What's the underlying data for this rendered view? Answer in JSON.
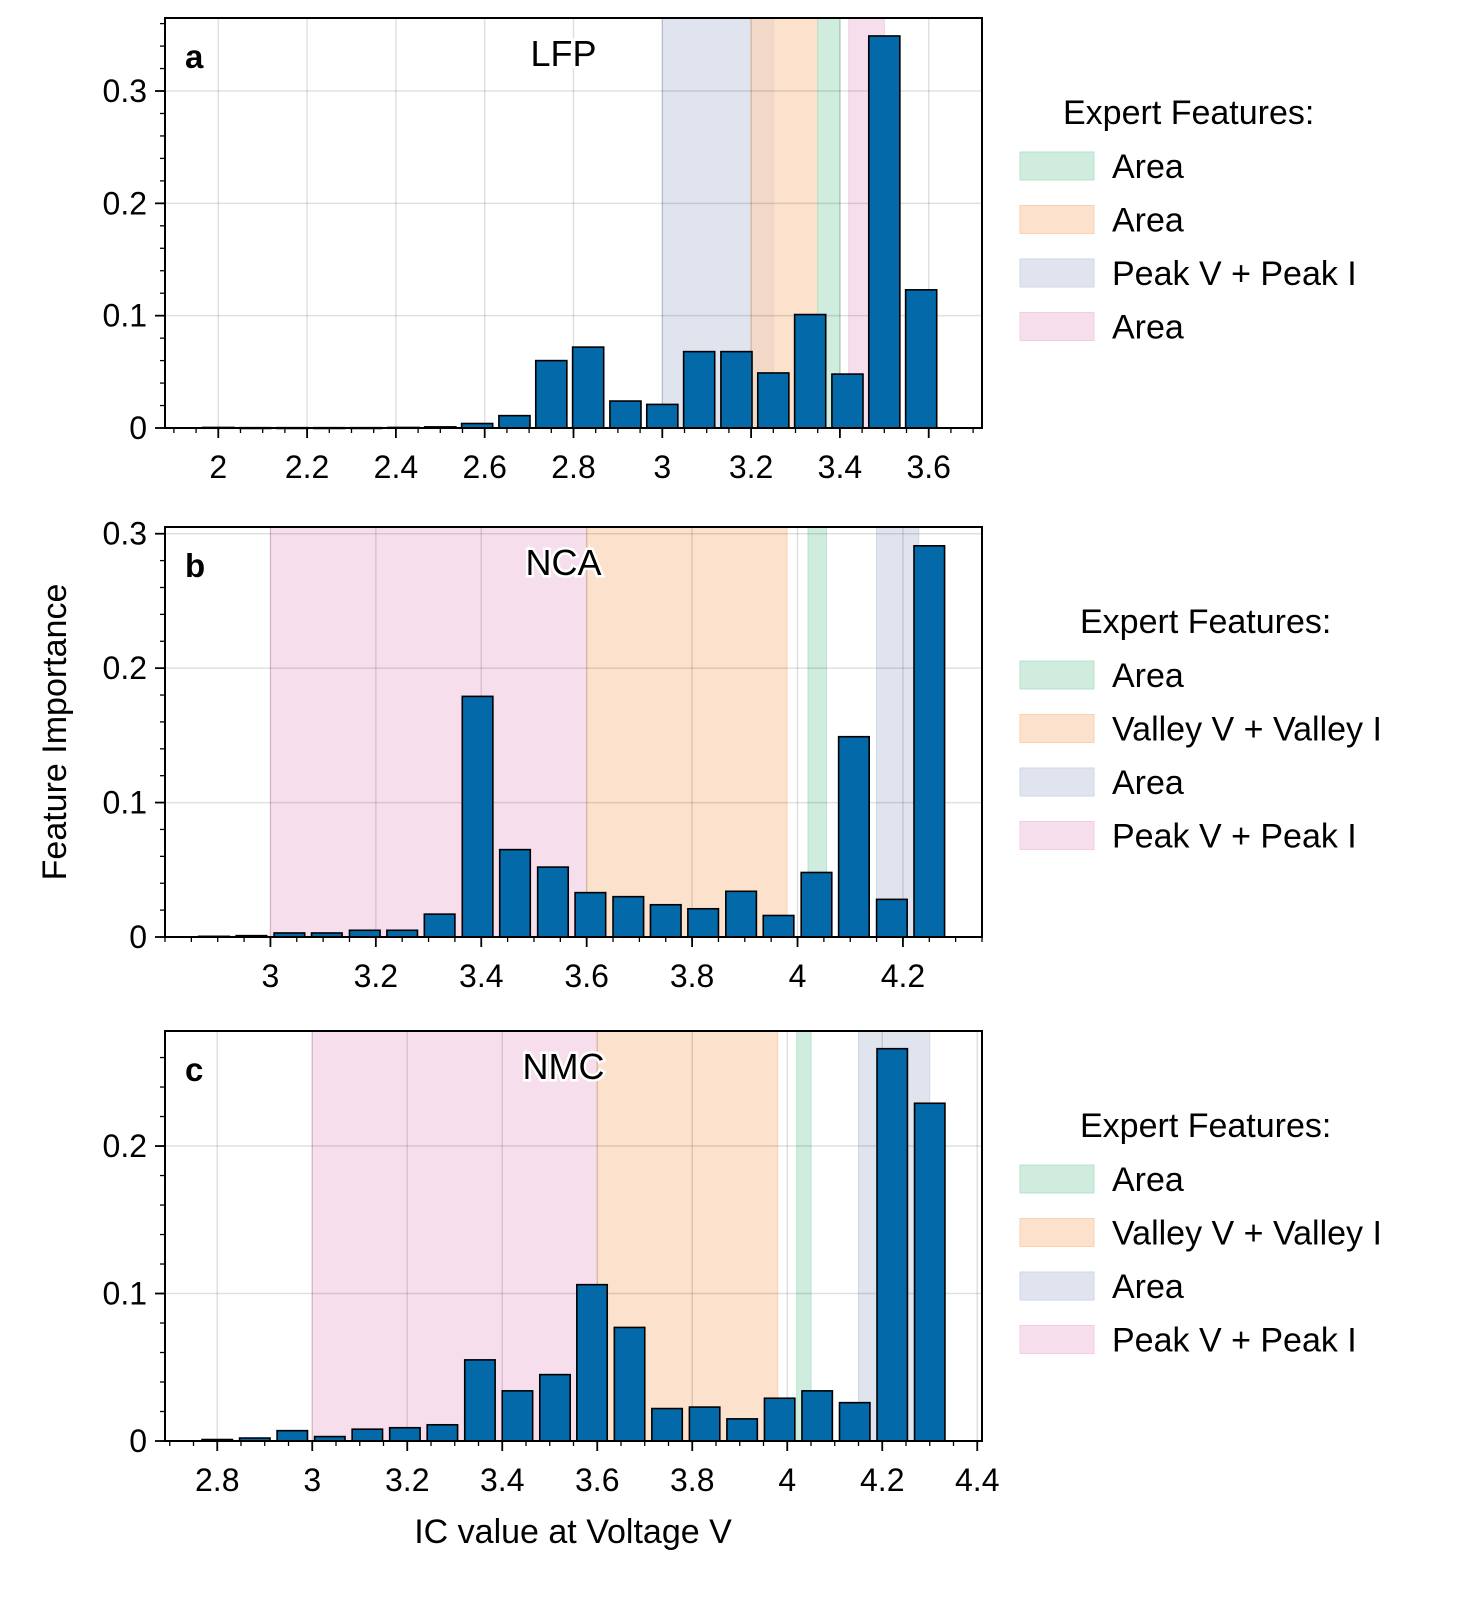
{
  "figure": {
    "ylabel": "Feature Importance",
    "xlabel": "IC value at Voltage V",
    "bar_color": "#0369a8",
    "band_colors": {
      "green": "#b7e2cc",
      "orange": "#fbd1b0",
      "blue": "#cfd6e6",
      "pink": "#f3cde3"
    }
  },
  "chart_data": [
    {
      "type": "bar",
      "panel_letter": "a",
      "title": "LFP",
      "xlim": [
        1.88,
        3.72
      ],
      "ylim": [
        0,
        0.365
      ],
      "xticks": [
        2,
        2.2,
        2.4,
        2.6,
        2.8,
        3,
        3.2,
        3.4,
        3.6
      ],
      "xtick_labels": [
        "2",
        "2.2",
        "2.4",
        "2.6",
        "2.8",
        "3",
        "3.2",
        "3.4",
        "3.6"
      ],
      "yticks": [
        0,
        0.1,
        0.2,
        0.3
      ],
      "ytick_labels": [
        "0",
        "0.1",
        "0.2",
        "0.3"
      ],
      "bar_width": 0.07,
      "x": [
        2.0,
        2.083,
        2.167,
        2.25,
        2.333,
        2.417,
        2.5,
        2.583,
        2.667,
        2.75,
        2.833,
        2.917,
        3.0,
        3.083,
        3.167,
        3.25,
        3.333,
        3.417,
        3.5,
        3.583
      ],
      "values": [
        0.0005,
        0.0003,
        0.0003,
        0.0003,
        0.0003,
        0.0005,
        0.001,
        0.004,
        0.011,
        0.06,
        0.072,
        0.024,
        0.021,
        0.068,
        0.068,
        0.049,
        0.101,
        0.048,
        0.349,
        0.123
      ],
      "bands": [
        {
          "x0": 3.0,
          "x1": 3.2,
          "color": "blue"
        },
        {
          "x0": 3.2,
          "x1": 3.25,
          "color": "blue"
        },
        {
          "x0": 3.2,
          "x1": 3.35,
          "color": "orange"
        },
        {
          "x0": 3.35,
          "x1": 3.4,
          "color": "green"
        },
        {
          "x0": 3.42,
          "x1": 3.5,
          "color": "pink"
        }
      ],
      "legend": {
        "title": "Expert Features:",
        "entries": [
          {
            "label": "Area",
            "color": "green"
          },
          {
            "label": "Area",
            "color": "orange"
          },
          {
            "label": "Peak V + Peak I",
            "color": "blue"
          },
          {
            "label": "Area",
            "color": "pink"
          }
        ]
      }
    },
    {
      "type": "bar",
      "panel_letter": "b",
      "title": "NCA",
      "xlim": [
        2.8,
        4.35
      ],
      "ylim": [
        0,
        0.305
      ],
      "xticks": [
        3,
        3.2,
        3.4,
        3.6,
        3.8,
        4,
        4.2
      ],
      "xtick_labels": [
        "3",
        "3.2",
        "3.4",
        "3.6",
        "3.8",
        "4",
        "4.2"
      ],
      "yticks": [
        0,
        0.1,
        0.2,
        0.3
      ],
      "ytick_labels": [
        "0",
        "0.1",
        "0.2",
        "0.3"
      ],
      "bar_width": 0.058,
      "x": [
        2.893,
        2.964,
        3.036,
        3.107,
        3.179,
        3.25,
        3.321,
        3.393,
        3.464,
        3.536,
        3.607,
        3.679,
        3.75,
        3.821,
        3.893,
        3.964,
        4.036,
        4.107,
        4.179,
        4.25
      ],
      "values": [
        0.0005,
        0.001,
        0.003,
        0.003,
        0.005,
        0.005,
        0.017,
        0.179,
        0.065,
        0.052,
        0.033,
        0.03,
        0.024,
        0.021,
        0.034,
        0.016,
        0.048,
        0.149,
        0.028,
        0.291
      ],
      "bands": [
        {
          "x0": 3.0,
          "x1": 3.6,
          "color": "pink"
        },
        {
          "x0": 3.6,
          "x1": 3.98,
          "color": "orange"
        },
        {
          "x0": 4.02,
          "x1": 4.055,
          "color": "green"
        },
        {
          "x0": 4.15,
          "x1": 4.23,
          "color": "blue"
        }
      ],
      "legend": {
        "title": "Expert Features:",
        "entries": [
          {
            "label": "Area",
            "color": "green"
          },
          {
            "label": "Valley V + Valley I",
            "color": "orange"
          },
          {
            "label": "Area",
            "color": "blue"
          },
          {
            "label": "Peak V + Peak I",
            "color": "pink"
          }
        ]
      }
    },
    {
      "type": "bar",
      "panel_letter": "c",
      "title": "NMC",
      "xlim": [
        2.69,
        4.41
      ],
      "ylim": [
        0,
        0.278
      ],
      "xticks": [
        2.8,
        3,
        3.2,
        3.4,
        3.6,
        3.8,
        4,
        4.2,
        4.4
      ],
      "xtick_labels": [
        "2.8",
        "3",
        "3.2",
        "3.4",
        "3.6",
        "3.8",
        "4",
        "4.2",
        "4.4"
      ],
      "yticks": [
        0,
        0.1,
        0.2
      ],
      "ytick_labels": [
        "0",
        "0.1",
        "0.2"
      ],
      "bar_width": 0.064,
      "x": [
        2.8,
        2.879,
        2.958,
        3.037,
        3.116,
        3.195,
        3.274,
        3.353,
        3.432,
        3.511,
        3.589,
        3.668,
        3.747,
        3.826,
        3.905,
        3.984,
        4.063,
        4.142,
        4.221,
        4.3
      ],
      "values": [
        0.001,
        0.002,
        0.007,
        0.003,
        0.008,
        0.009,
        0.011,
        0.055,
        0.034,
        0.045,
        0.106,
        0.077,
        0.022,
        0.023,
        0.015,
        0.029,
        0.034,
        0.026,
        0.266,
        0.229
      ],
      "bands": [
        {
          "x0": 3.0,
          "x1": 3.6,
          "color": "pink"
        },
        {
          "x0": 3.6,
          "x1": 3.98,
          "color": "orange"
        },
        {
          "x0": 4.02,
          "x1": 4.05,
          "color": "green"
        },
        {
          "x0": 4.15,
          "x1": 4.3,
          "color": "blue"
        }
      ],
      "legend": {
        "title": "Expert Features:",
        "entries": [
          {
            "label": "Area",
            "color": "green"
          },
          {
            "label": "Valley V + Valley I",
            "color": "orange"
          },
          {
            "label": "Area",
            "color": "blue"
          },
          {
            "label": "Peak V + Peak I",
            "color": "pink"
          }
        ]
      }
    }
  ]
}
